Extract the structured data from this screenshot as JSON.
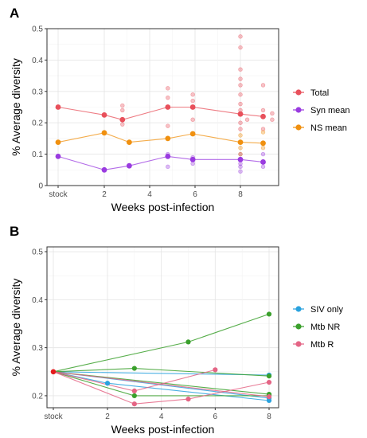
{
  "chart_data": [
    {
      "panel_label": "A",
      "type": "line",
      "xlabel": "Weeks post-infection",
      "ylabel": "% Average diversity",
      "x_ticks": [
        "stock",
        "2",
        "4",
        "6",
        "8"
      ],
      "y_ticks": [
        "0",
        "0.1",
        "0.2",
        "0.3",
        "0.4",
        "0.5"
      ],
      "ylim": [
        0,
        0.5
      ],
      "grid": true,
      "legend_position": "right",
      "series": [
        {
          "name": "Total",
          "color": "#e8505b",
          "points": [
            {
              "x": "stock",
              "y": 0.25
            },
            {
              "x": 2,
              "y": 0.225
            },
            {
              "x": 2.8,
              "y": 0.21
            },
            {
              "x": 4.8,
              "y": 0.25
            },
            {
              "x": 5.9,
              "y": 0.25
            },
            {
              "x": 8,
              "y": 0.228
            },
            {
              "x": 9,
              "y": 0.22
            }
          ],
          "replicates": [
            {
              "x": 2.8,
              "y": 0.255
            },
            {
              "x": 2.8,
              "y": 0.24
            },
            {
              "x": 2.8,
              "y": 0.195
            },
            {
              "x": 4.8,
              "y": 0.31
            },
            {
              "x": 4.8,
              "y": 0.28
            },
            {
              "x": 4.8,
              "y": 0.19
            },
            {
              "x": 5.9,
              "y": 0.29
            },
            {
              "x": 5.9,
              "y": 0.27
            },
            {
              "x": 5.9,
              "y": 0.21
            },
            {
              "x": 8,
              "y": 0.475
            },
            {
              "x": 8,
              "y": 0.44
            },
            {
              "x": 8,
              "y": 0.37
            },
            {
              "x": 8,
              "y": 0.34
            },
            {
              "x": 8,
              "y": 0.32
            },
            {
              "x": 8,
              "y": 0.29
            },
            {
              "x": 8,
              "y": 0.26
            },
            {
              "x": 8,
              "y": 0.24
            },
            {
              "x": 8,
              "y": 0.2
            },
            {
              "x": 8,
              "y": 0.18
            },
            {
              "x": 8.3,
              "y": 0.21
            },
            {
              "x": 9,
              "y": 0.32
            },
            {
              "x": 9,
              "y": 0.24
            },
            {
              "x": 9,
              "y": 0.18
            },
            {
              "x": 9.4,
              "y": 0.23
            },
            {
              "x": 9.4,
              "y": 0.21
            }
          ]
        },
        {
          "name": "Syn mean",
          "color": "#9a3be0",
          "points": [
            {
              "x": "stock",
              "y": 0.093
            },
            {
              "x": 2,
              "y": 0.05
            },
            {
              "x": 3.1,
              "y": 0.063
            },
            {
              "x": 4.8,
              "y": 0.093
            },
            {
              "x": 5.9,
              "y": 0.083
            },
            {
              "x": 8,
              "y": 0.083
            },
            {
              "x": 9,
              "y": 0.075
            }
          ],
          "replicates": [
            {
              "x": 4.8,
              "y": 0.06
            },
            {
              "x": 4.8,
              "y": 0.1
            },
            {
              "x": 5.9,
              "y": 0.09
            },
            {
              "x": 5.9,
              "y": 0.07
            },
            {
              "x": 8,
              "y": 0.1
            },
            {
              "x": 8,
              "y": 0.07
            },
            {
              "x": 8,
              "y": 0.06
            },
            {
              "x": 8,
              "y": 0.045
            },
            {
              "x": 9,
              "y": 0.1
            },
            {
              "x": 9,
              "y": 0.06
            }
          ]
        },
        {
          "name": "NS mean",
          "color": "#f0900f",
          "points": [
            {
              "x": "stock",
              "y": 0.138
            },
            {
              "x": 2,
              "y": 0.168
            },
            {
              "x": 3.1,
              "y": 0.138
            },
            {
              "x": 4.8,
              "y": 0.15
            },
            {
              "x": 5.9,
              "y": 0.165
            },
            {
              "x": 8,
              "y": 0.138
            },
            {
              "x": 9,
              "y": 0.135
            }
          ],
          "replicates": [
            {
              "x": 8,
              "y": 0.16
            },
            {
              "x": 8,
              "y": 0.12
            },
            {
              "x": 8,
              "y": 0.1
            },
            {
              "x": 9,
              "y": 0.17
            },
            {
              "x": 9,
              "y": 0.12
            }
          ]
        }
      ]
    },
    {
      "panel_label": "B",
      "type": "line",
      "xlabel": "Weeks post-infection",
      "ylabel": "% Average diversity",
      "x_ticks": [
        "stock",
        "2",
        "4",
        "6",
        "8"
      ],
      "y_ticks": [
        "0.2",
        "0.3",
        "0.4",
        "0.5"
      ],
      "ylim": [
        0.175,
        0.51
      ],
      "grid": true,
      "legend_position": "right",
      "stock_value": 0.25,
      "groups": [
        {
          "name": "SIV only",
          "color": "#2aa2de",
          "lines": [
            [
              {
                "x": "stock",
                "y": 0.25
              },
              {
                "x": 2,
                "y": 0.226
              },
              {
                "x": 8,
                "y": 0.19
              }
            ],
            [
              {
                "x": "stock",
                "y": 0.25
              },
              {
                "x": 8,
                "y": 0.243
              }
            ],
            [
              {
                "x": "stock",
                "y": 0.25
              },
              {
                "x": 8,
                "y": 0.195
              }
            ]
          ]
        },
        {
          "name": "Mtb NR",
          "color": "#3aa02c",
          "lines": [
            [
              {
                "x": "stock",
                "y": 0.25
              },
              {
                "x": 5,
                "y": 0.312
              },
              {
                "x": 8,
                "y": 0.37
              }
            ],
            [
              {
                "x": "stock",
                "y": 0.25
              },
              {
                "x": 3,
                "y": 0.257
              },
              {
                "x": 8,
                "y": 0.241
              }
            ],
            [
              {
                "x": "stock",
                "y": 0.25
              },
              {
                "x": 3,
                "y": 0.2
              },
              {
                "x": 8,
                "y": 0.2
              }
            ],
            [
              {
                "x": "stock",
                "y": 0.25
              },
              {
                "x": 8,
                "y": 0.203
              }
            ]
          ]
        },
        {
          "name": "Mtb R",
          "color": "#e46585",
          "lines": [
            [
              {
                "x": "stock",
                "y": 0.25
              },
              {
                "x": 3,
                "y": 0.183
              },
              {
                "x": 5,
                "y": 0.193
              },
              {
                "x": 8,
                "y": 0.228
              }
            ],
            [
              {
                "x": "stock",
                "y": 0.25
              },
              {
                "x": 3,
                "y": 0.21
              },
              {
                "x": 6,
                "y": 0.254
              }
            ],
            [
              {
                "x": "stock",
                "y": 0.25
              },
              {
                "x": 8,
                "y": 0.198
              }
            ]
          ]
        }
      ]
    }
  ]
}
